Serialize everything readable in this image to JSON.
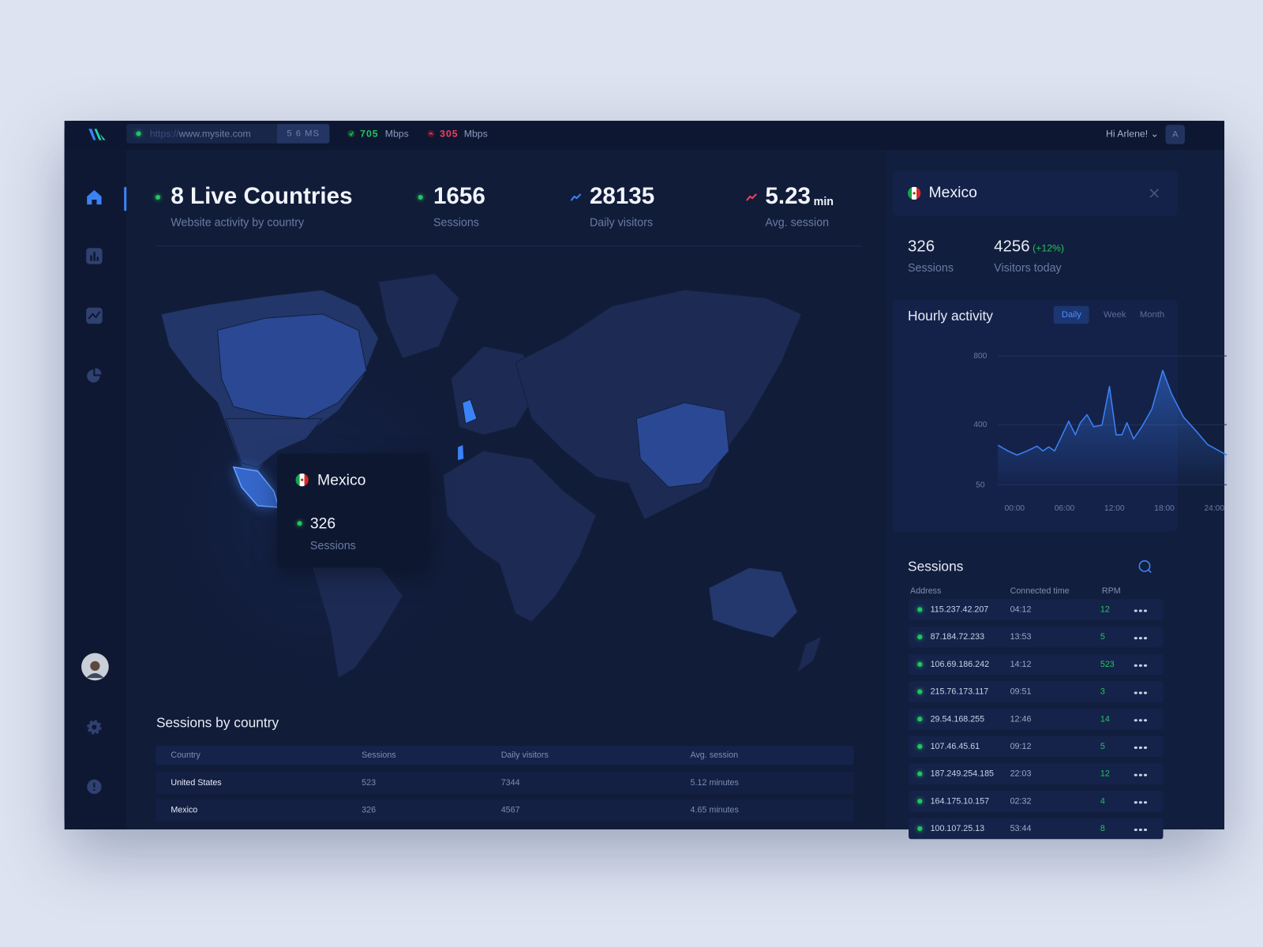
{
  "topbar": {
    "url_scheme": "https://",
    "url_host": "www.mysite.com",
    "latency": "5 6 MS",
    "download": "705",
    "download_unit": "Mbps",
    "upload": "305",
    "upload_unit": "Mbps",
    "greeting": "Hi Arlene!",
    "avatar": "A"
  },
  "stats": [
    {
      "value": "8 Live Countries",
      "label": "Website activity by country"
    },
    {
      "value": "1656",
      "label": "Sessions"
    },
    {
      "value": "28135",
      "label": "Daily visitors"
    },
    {
      "value": "5.23",
      "unit": "min",
      "label": "Avg. session"
    }
  ],
  "map_tooltip": {
    "country": "Mexico",
    "value": "326",
    "label": "Sessions"
  },
  "country_table": {
    "title": "Sessions by country",
    "columns": [
      "Country",
      "Sessions",
      "Daily visitors",
      "Avg. session"
    ],
    "rows": [
      [
        "United States",
        "523",
        "7344",
        "5.12 minutes"
      ],
      [
        "Mexico",
        "326",
        "4567",
        "4.65 minutes"
      ]
    ]
  },
  "detail": {
    "country": "Mexico",
    "sessions": "326",
    "sessions_label": "Sessions",
    "visitors": "4256",
    "change": "(+12%)",
    "visitors_label": "Visitors today"
  },
  "chart_data": {
    "type": "area",
    "title": "Hourly activity",
    "tabs": [
      "Daily",
      "Week",
      "Month"
    ],
    "x": [
      -2.0,
      -0.8,
      0.3,
      1.5,
      2.7,
      3.4,
      4.1,
      4.8,
      5.5,
      6.5,
      7.3,
      7.9,
      8.7,
      9.5,
      10.5,
      11.4,
      12.2,
      12.9,
      13.5,
      14.3,
      15.3,
      16.5,
      17.8,
      18.9,
      20.3,
      21.8,
      23.2,
      25.5
    ],
    "values": [
      280,
      247,
      223,
      247,
      275,
      247,
      270,
      247,
      317,
      420,
      341,
      411,
      458,
      388,
      397,
      622,
      341,
      341,
      411,
      317,
      388,
      491,
      716,
      575,
      444,
      364,
      284,
      223
    ],
    "color": "#3b82f6",
    "xlim": [
      -2.0,
      25.5
    ],
    "xticks": [
      {
        "value": 0,
        "label": "00:00"
      },
      {
        "value": 6,
        "label": "06:00"
      },
      {
        "value": 12,
        "label": "12:00"
      },
      {
        "value": 18,
        "label": "18:00"
      },
      {
        "value": 24,
        "label": "24:00"
      }
    ],
    "ylim": [
      50,
      800
    ],
    "yticks": [
      50,
      400,
      800
    ],
    "grid": true
  },
  "sessions_list": {
    "title": "Sessions",
    "columns": [
      "Address",
      "Connected time",
      "RPM"
    ],
    "rows": [
      [
        "115.237.42.207",
        "04:12",
        "12"
      ],
      [
        "87.184.72.233",
        "13:53",
        "5"
      ],
      [
        "106.69.186.242",
        "14:12",
        "523"
      ],
      [
        "215.76.173.117",
        "09:51",
        "3"
      ],
      [
        "29.54.168.255",
        "12:46",
        "14"
      ],
      [
        "107.46.45.61",
        "09:12",
        "5"
      ],
      [
        "187.249.254.185",
        "22:03",
        "12"
      ],
      [
        "164.175.10.157",
        "02:32",
        "4"
      ],
      [
        "100.107.25.13",
        "53:44",
        "8"
      ]
    ]
  }
}
